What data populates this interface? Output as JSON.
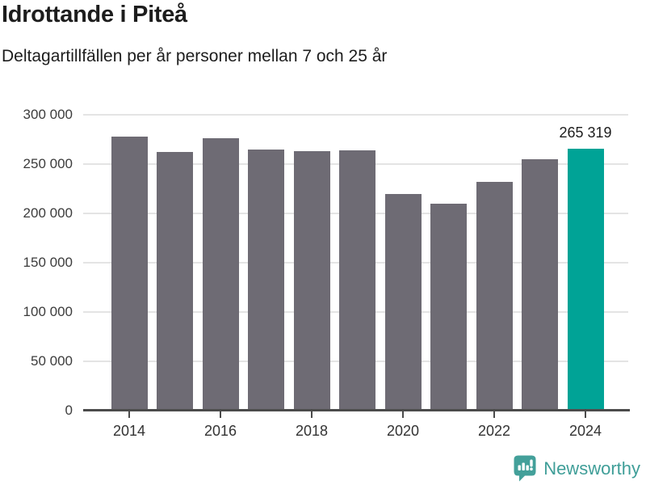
{
  "header": {
    "title": "Idrottande i Piteå",
    "subtitle": "Deltagartillfällen per år personer mellan 7 och 25 år"
  },
  "chart_data": {
    "type": "bar",
    "title": "Idrottande i Piteå",
    "subtitle": "Deltagartillfällen per år personer mellan 7 och 25 år",
    "categories": [
      "2014",
      "2015",
      "2016",
      "2017",
      "2018",
      "2019",
      "2020",
      "2021",
      "2022",
      "2023",
      "2024"
    ],
    "values": [
      278000,
      262000,
      276000,
      264500,
      263000,
      264000,
      220000,
      210000,
      232000,
      255000,
      265319
    ],
    "bar_color": "#6e6b74",
    "highlight": {
      "category": "2024",
      "index": 10,
      "value": 265319,
      "label": "265 319",
      "color": "#00a396"
    },
    "xlabel": "",
    "ylabel": "",
    "ylim": [
      0,
      300000
    ],
    "y_ticks": [
      0,
      50000,
      100000,
      150000,
      200000,
      250000,
      300000
    ],
    "y_tick_labels": [
      "0",
      "50 000",
      "100 000",
      "150 000",
      "200 000",
      "250 000",
      "300 000"
    ],
    "x_tick_labels": [
      "2014",
      "2016",
      "2018",
      "2020",
      "2022",
      "2024"
    ],
    "x_tick_indices": [
      0,
      2,
      4,
      6,
      8,
      10
    ],
    "grid": "horizontal",
    "gridline_color": "#e4e4e4",
    "axis_color": "#4b4b4b",
    "legend": false
  },
  "footer": {
    "brand": "Newsworthy",
    "brand_color": "#3f9e98",
    "logo_icon": "newsworthy-bar-chart-bubble-icon"
  }
}
